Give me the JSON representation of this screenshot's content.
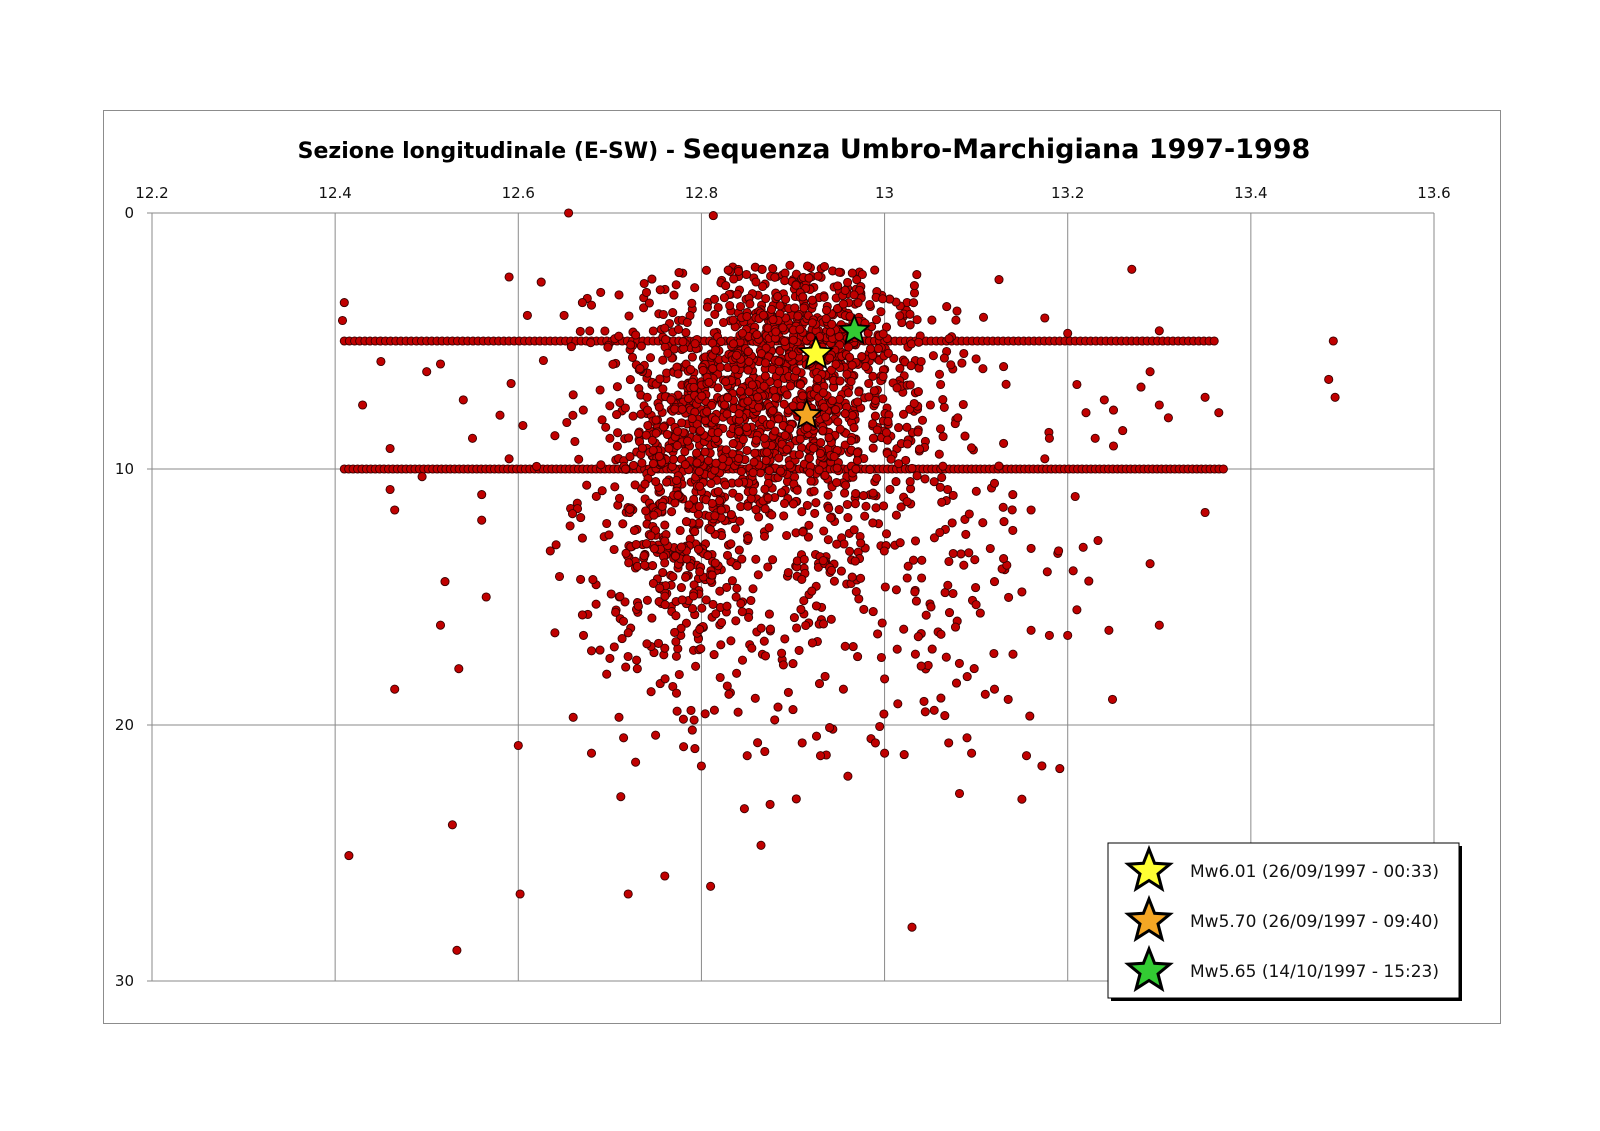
{
  "chart_data": {
    "type": "scatter",
    "title_part1": "Sezione longitudinale (E-SW) - ",
    "title_part2": "Sequenza Umbro-Marchigiana 1997-1998",
    "xlabel": "",
    "ylabel": "",
    "xlim": [
      12.2,
      13.6
    ],
    "ylim": [
      0,
      30
    ],
    "x_ticks": [
      "12.2",
      "12.4",
      "12.6",
      "12.8",
      "13",
      "13.2",
      "13.4",
      "13.6"
    ],
    "y_ticks": [
      "0",
      "10",
      "20",
      "30"
    ],
    "x_axis_position": "top",
    "y_axis_inverted": true,
    "grid": true,
    "legend_position": "bottom-right",
    "point_color": "#c00000",
    "events": [
      {
        "label": "Mw6.01 (26/09/1997 - 00:33)",
        "x": 12.925,
        "y": 5.5,
        "color": "#ffff33"
      },
      {
        "label": "Mw5.70 (26/09/1997 - 09:40)",
        "x": 12.915,
        "y": 7.9,
        "color": "#f4a624"
      },
      {
        "label": "Mw5.65 (14/10/1997 - 15:23)",
        "x": 12.967,
        "y": 4.6,
        "color": "#33cc33"
      }
    ],
    "clusters": [
      {
        "name": "fixed-depth-5km",
        "x_range": [
          12.41,
          13.36
        ],
        "y": 5.0,
        "count": 170
      },
      {
        "name": "fixed-depth-10km",
        "x_range": [
          12.41,
          13.37
        ],
        "y": 10.0,
        "count": 200
      }
    ],
    "points": [
      [
        12.655,
        0.0
      ],
      [
        12.813,
        0.1
      ],
      [
        12.59,
        2.5
      ],
      [
        12.625,
        2.7
      ],
      [
        12.41,
        3.5
      ],
      [
        12.408,
        4.2
      ],
      [
        12.67,
        3.5
      ],
      [
        12.69,
        3.1
      ],
      [
        12.71,
        3.2
      ],
      [
        12.74,
        3.1
      ],
      [
        12.76,
        4.5
      ],
      [
        12.61,
        4.0
      ],
      [
        12.65,
        4.0
      ],
      [
        12.68,
        3.6
      ],
      [
        13.125,
        2.6
      ],
      [
        13.27,
        2.2
      ],
      [
        13.175,
        4.1
      ],
      [
        13.2,
        4.7
      ],
      [
        13.3,
        4.6
      ],
      [
        13.49,
        5.0
      ],
      [
        13.485,
        6.5
      ],
      [
        13.492,
        7.2
      ],
      [
        13.35,
        7.2
      ],
      [
        13.365,
        7.8
      ],
      [
        13.3,
        7.5
      ],
      [
        13.31,
        8.0
      ],
      [
        13.29,
        6.2
      ],
      [
        13.28,
        6.8
      ],
      [
        13.24,
        7.3
      ],
      [
        13.25,
        7.7
      ],
      [
        13.22,
        7.8
      ],
      [
        13.26,
        8.5
      ],
      [
        13.23,
        8.8
      ],
      [
        13.25,
        9.1
      ],
      [
        13.21,
        6.7
      ],
      [
        13.35,
        11.7
      ],
      [
        13.29,
        13.7
      ],
      [
        13.3,
        16.1
      ],
      [
        13.245,
        16.3
      ],
      [
        13.2,
        16.5
      ],
      [
        13.21,
        15.5
      ],
      [
        13.15,
        22.9
      ],
      [
        13.155,
        21.2
      ],
      [
        13.03,
        27.9
      ],
      [
        12.43,
        7.5
      ],
      [
        12.45,
        5.8
      ],
      [
        12.46,
        9.2
      ],
      [
        12.46,
        10.8
      ],
      [
        12.465,
        11.6
      ],
      [
        12.52,
        14.4
      ],
      [
        12.515,
        16.1
      ],
      [
        12.535,
        17.8
      ],
      [
        12.56,
        12.0
      ],
      [
        12.56,
        11.0
      ],
      [
        12.565,
        15.0
      ],
      [
        12.465,
        18.6
      ],
      [
        12.415,
        25.1
      ],
      [
        12.528,
        23.9
      ],
      [
        12.533,
        28.8
      ],
      [
        12.6,
        20.8
      ],
      [
        12.602,
        26.6
      ],
      [
        12.66,
        19.7
      ],
      [
        12.71,
        19.7
      ],
      [
        12.712,
        22.8
      ],
      [
        12.72,
        26.6
      ],
      [
        12.76,
        25.9
      ],
      [
        12.81,
        26.3
      ],
      [
        12.865,
        24.7
      ],
      [
        12.875,
        23.1
      ],
      [
        12.8,
        21.6
      ],
      [
        12.79,
        20.2
      ],
      [
        12.75,
        20.4
      ],
      [
        12.715,
        20.5
      ],
      [
        12.68,
        21.1
      ],
      [
        12.495,
        10.3
      ],
      [
        12.5,
        6.2
      ],
      [
        12.515,
        5.9
      ],
      [
        12.54,
        7.3
      ],
      [
        12.55,
        8.8
      ],
      [
        12.58,
        7.9
      ],
      [
        12.59,
        9.6
      ],
      [
        12.605,
        8.3
      ],
      [
        12.62,
        9.9
      ],
      [
        12.64,
        8.7
      ],
      [
        12.66,
        7.1
      ],
      [
        12.7,
        8.8
      ],
      [
        12.635,
        13.2
      ],
      [
        12.645,
        14.2
      ],
      [
        12.67,
        12.7
      ],
      [
        12.64,
        16.4
      ],
      [
        12.68,
        17.1
      ],
      [
        12.67,
        15.7
      ],
      [
        12.7,
        17.4
      ],
      [
        12.72,
        16.4
      ],
      [
        12.73,
        17.8
      ],
      [
        12.745,
        18.7
      ],
      [
        12.76,
        17.0
      ],
      [
        12.94,
        20.1
      ],
      [
        12.99,
        20.7
      ],
      [
        13.0,
        21.1
      ],
      [
        12.955,
        18.6
      ],
      [
        12.935,
        18.1
      ],
      [
        13.0,
        18.2
      ],
      [
        13.04,
        17.7
      ],
      [
        13.07,
        20.7
      ],
      [
        13.09,
        20.5
      ],
      [
        13.095,
        21.1
      ],
      [
        13.11,
        18.8
      ],
      [
        13.12,
        18.6
      ],
      [
        13.135,
        19.0
      ],
      [
        13.1,
        15.3
      ],
      [
        13.15,
        14.8
      ],
      [
        13.16,
        16.3
      ],
      [
        13.18,
        16.5
      ],
      [
        13.16,
        11.6
      ],
      [
        13.19,
        13.2
      ],
      [
        13.16,
        13.1
      ],
      [
        13.14,
        12.4
      ],
      [
        13.13,
        13.5
      ],
      [
        13.12,
        14.4
      ],
      [
        13.14,
        11.0
      ],
      [
        13.13,
        9.0
      ],
      [
        13.175,
        9.6
      ],
      [
        13.18,
        8.8
      ],
      [
        13.08,
        8.0
      ],
      [
        13.05,
        7.5
      ],
      [
        13.06,
        6.3
      ],
      [
        13.04,
        5.8
      ],
      [
        13.13,
        6.0
      ],
      [
        13.1,
        5.7
      ],
      [
        12.9,
        19.4
      ],
      [
        12.91,
        20.7
      ],
      [
        12.93,
        21.2
      ],
      [
        12.96,
        22.0
      ],
      [
        12.88,
        19.8
      ],
      [
        12.84,
        19.5
      ],
      [
        12.83,
        18.8
      ],
      [
        12.855,
        17.0
      ],
      [
        12.87,
        17.3
      ],
      [
        12.9,
        17.6
      ],
      [
        12.85,
        21.2
      ]
    ],
    "dense_core": [
      {
        "x_center": 12.87,
        "y_center": 7.5,
        "x_spread": 0.085,
        "y_spread": 2.6,
        "count": 1100
      },
      {
        "x_center": 12.92,
        "y_center": 4.8,
        "x_spread": 0.06,
        "y_spread": 1.4,
        "count": 320
      },
      {
        "x_center": 12.77,
        "y_center": 12.5,
        "x_spread": 0.035,
        "y_spread": 2.8,
        "count": 330
      },
      {
        "x_center": 12.9,
        "y_center": 13.5,
        "x_spread": 0.12,
        "y_spread": 3.5,
        "count": 260
      },
      {
        "x_center": 13.02,
        "y_center": 13.0,
        "x_spread": 0.08,
        "y_spread": 3.5,
        "count": 120
      }
    ]
  }
}
